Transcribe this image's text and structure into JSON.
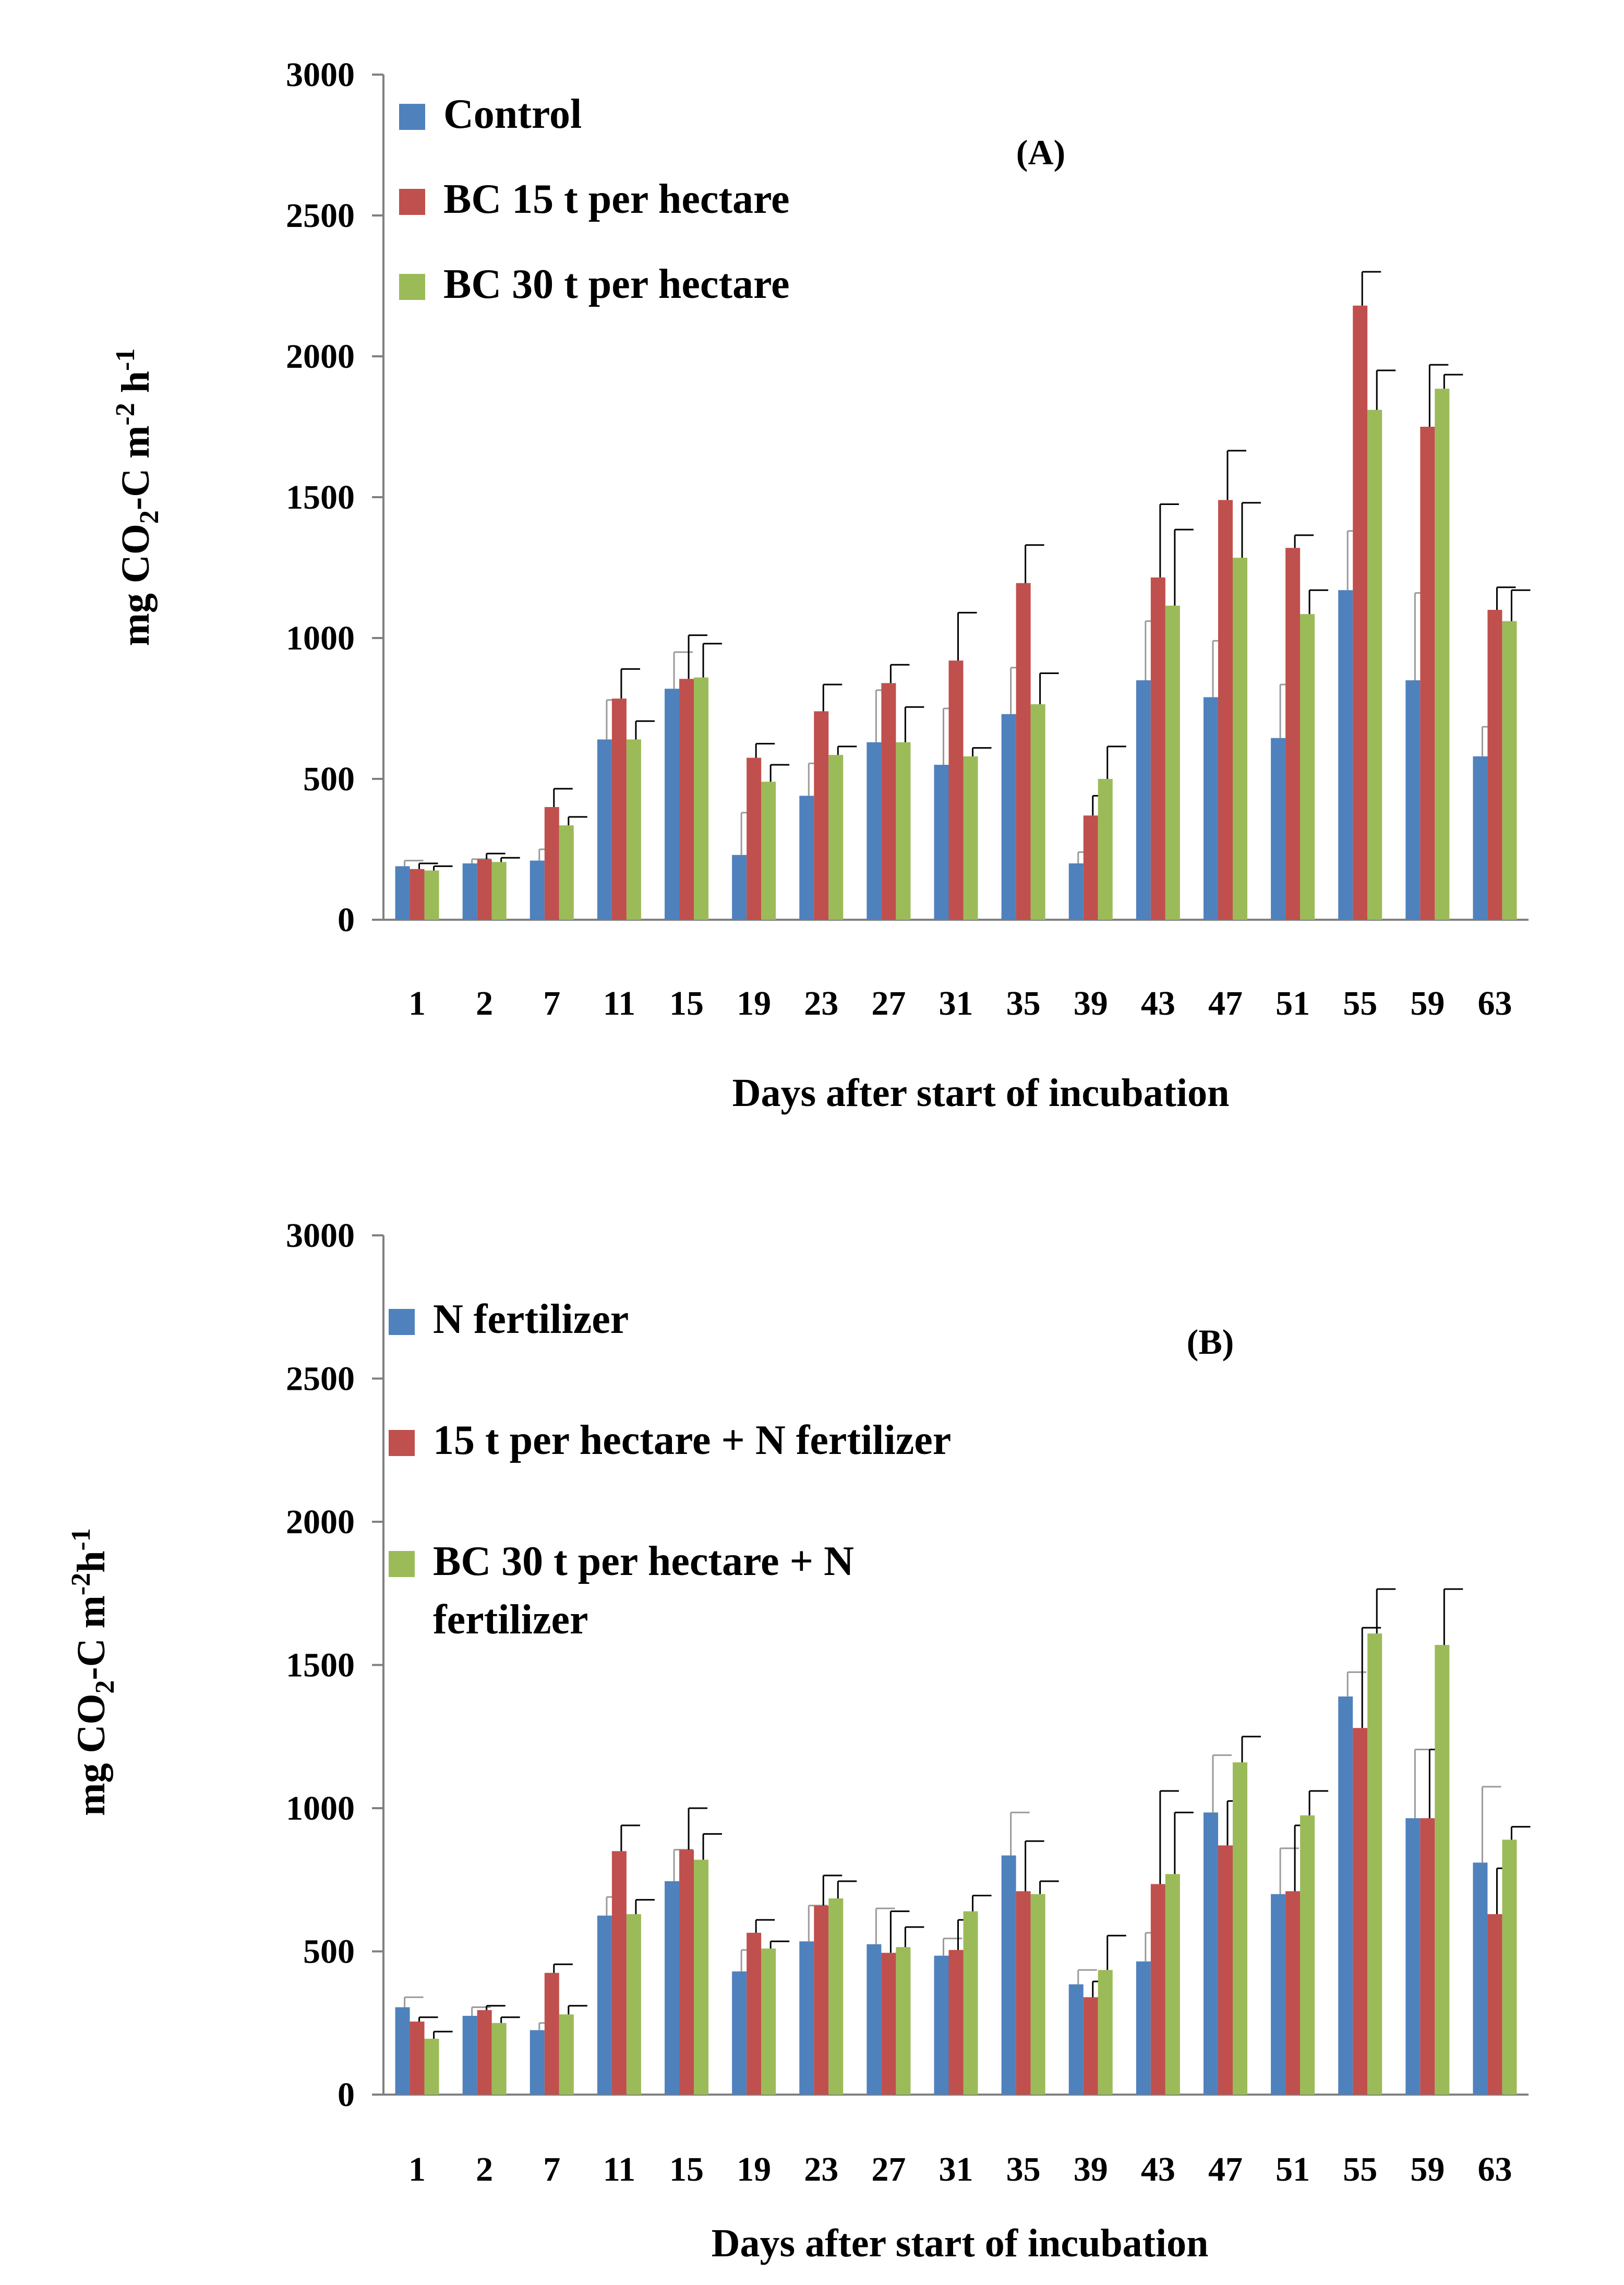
{
  "colors": {
    "series1": "#4F81BD",
    "series2": "#C0504D",
    "series3": "#9BBB59",
    "axis": "#808080",
    "error": "#000000",
    "error_light": "#9a9a9a"
  },
  "chart_data": [
    {
      "type": "bar",
      "panel_label": "(A)",
      "categories": [
        "1",
        "2",
        "7",
        "11",
        "15",
        "19",
        "23",
        "27",
        "31",
        "35",
        "39",
        "43",
        "47",
        "51",
        "55",
        "59",
        "63"
      ],
      "xlabel": "Days after start of incubation",
      "ylabel": {
        "main": "mg CO",
        "sub": "2",
        "mid": "-C m",
        "sup1": "-2",
        "mid2": " h",
        "sup2": "-1"
      },
      "ylim": [
        0,
        3000
      ],
      "yticks": [
        "0",
        "500",
        "1000",
        "1500",
        "2000",
        "2500",
        "3000"
      ],
      "series": [
        {
          "name": "Control",
          "values": [
            190,
            200,
            210,
            640,
            820,
            230,
            440,
            630,
            550,
            730,
            200,
            850,
            790,
            645,
            1170,
            850,
            580
          ],
          "errors": [
            20,
            15,
            40,
            140,
            130,
            150,
            115,
            185,
            200,
            165,
            40,
            210,
            200,
            190,
            210,
            310,
            105
          ]
        },
        {
          "name": "BC 15 t per hectare",
          "values": [
            180,
            215,
            400,
            785,
            855,
            575,
            740,
            840,
            920,
            1195,
            370,
            1215,
            1490,
            1320,
            2180,
            1750,
            1100
          ],
          "errors": [
            20,
            20,
            65,
            105,
            155,
            50,
            95,
            65,
            170,
            135,
            70,
            260,
            175,
            45,
            120,
            220,
            80
          ]
        },
        {
          "name": "BC 30 t per hectare",
          "values": [
            175,
            205,
            335,
            640,
            860,
            490,
            585,
            630,
            580,
            765,
            500,
            1115,
            1285,
            1085,
            1810,
            1885,
            1060
          ],
          "errors": [
            15,
            15,
            30,
            65,
            120,
            60,
            30,
            125,
            30,
            110,
            115,
            270,
            195,
            85,
            140,
            50,
            110
          ]
        }
      ],
      "legend_position": "top-left"
    },
    {
      "type": "bar",
      "panel_label": "(B)",
      "categories": [
        "1",
        "2",
        "7",
        "11",
        "15",
        "19",
        "23",
        "27",
        "31",
        "35",
        "39",
        "43",
        "47",
        "51",
        "55",
        "59",
        "63"
      ],
      "xlabel": "Days after start of incubation",
      "ylabel": {
        "main": "mg CO",
        "sub": "2",
        "mid": "-C m",
        "sup1": "-2",
        "mid2": "h",
        "sup2": "-1"
      },
      "ylim": [
        0,
        3000
      ],
      "yticks": [
        "0",
        "500",
        "1000",
        "1500",
        "2000",
        "2500",
        "3000"
      ],
      "series": [
        {
          "name": "N fertilizer",
          "values": [
            305,
            275,
            225,
            625,
            745,
            430,
            535,
            525,
            485,
            835,
            385,
            465,
            985,
            700,
            1390,
            965,
            810
          ],
          "errors": [
            35,
            30,
            25,
            65,
            110,
            75,
            125,
            125,
            60,
            150,
            50,
            100,
            200,
            160,
            85,
            240,
            265
          ]
        },
        {
          "name": "15 t per hectare + N fertilizer",
          "values": [
            255,
            295,
            425,
            850,
            855,
            565,
            660,
            495,
            505,
            710,
            340,
            735,
            870,
            710,
            1280,
            965,
            630
          ],
          "errors": [
            15,
            15,
            30,
            90,
            145,
            45,
            105,
            145,
            105,
            175,
            55,
            325,
            155,
            230,
            350,
            240,
            160
          ]
        },
        {
          "name": "BC 30 t per hectare + N fertilizer",
          "values": [
            195,
            250,
            280,
            630,
            820,
            510,
            685,
            515,
            640,
            700,
            435,
            770,
            1160,
            975,
            1610,
            1570,
            890
          ],
          "errors": [
            25,
            20,
            30,
            50,
            90,
            25,
            60,
            70,
            55,
            45,
            120,
            215,
            90,
            85,
            155,
            195,
            45
          ]
        }
      ],
      "legend_lines": [
        [
          "N fertilizer"
        ],
        [
          "15 t per hectare + N fertilizer"
        ],
        [
          "BC 30 t per hectare + N",
          "fertilizer"
        ]
      ],
      "legend_position": "top-left"
    }
  ]
}
